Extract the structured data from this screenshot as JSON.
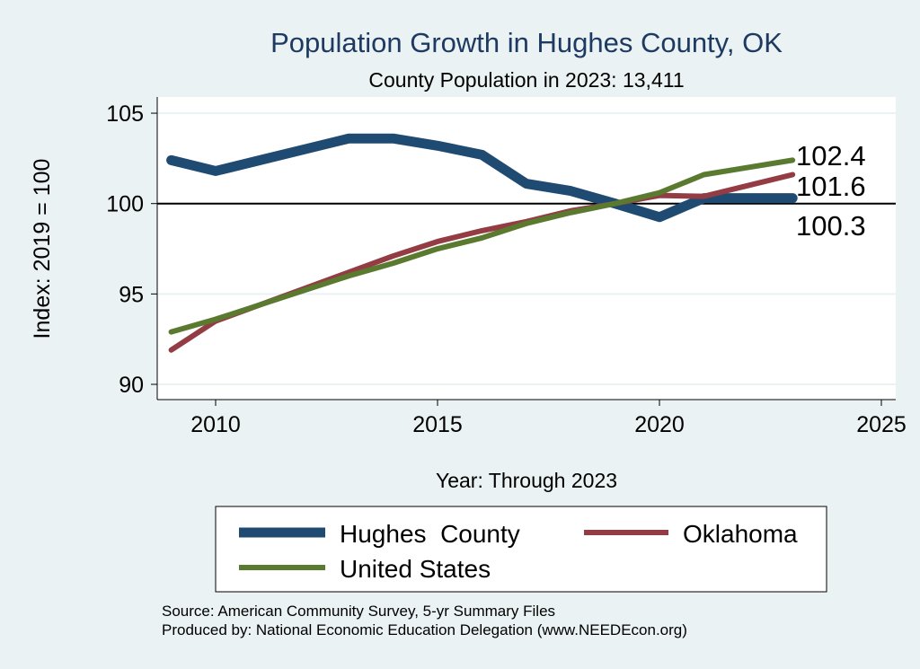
{
  "chart_data": {
    "type": "line",
    "title": "Population Growth in Hughes County, OK",
    "subtitle": "County Population in 2023: 13,411",
    "xlabel": "Year: Through 2023",
    "ylabel": "Index: 2019 = 100",
    "xlim": [
      2008.7,
      2025
    ],
    "ylim": [
      89.1,
      106
    ],
    "xticks": [
      2010,
      2015,
      2020,
      2025
    ],
    "yticks": [
      90,
      95,
      100,
      105
    ],
    "reference_line": 100,
    "grid": true,
    "legend_position": "bottom",
    "x": [
      2009,
      2010,
      2011,
      2012,
      2013,
      2014,
      2015,
      2016,
      2017,
      2018,
      2019,
      2020,
      2021,
      2022,
      2023
    ],
    "series": [
      {
        "name": "Hughes  County",
        "color": "#1f4b73",
        "end_label": "100.3",
        "values": [
          102.4,
          101.8,
          102.4,
          103.0,
          103.6,
          103.6,
          103.2,
          102.7,
          101.1,
          100.7,
          100.0,
          99.25,
          100.3,
          100.3,
          100.3
        ]
      },
      {
        "name": "Oklahoma",
        "color": "#943c44",
        "end_label": "101.6",
        "values": [
          91.9,
          93.5,
          94.4,
          95.3,
          96.2,
          97.1,
          97.9,
          98.5,
          99.0,
          99.6,
          100.0,
          100.45,
          100.4,
          101.0,
          101.6
        ]
      },
      {
        "name": "United States",
        "color": "#5a7a30",
        "end_label": "102.4",
        "values": [
          92.9,
          93.6,
          94.4,
          95.2,
          96.0,
          96.7,
          97.5,
          98.1,
          98.9,
          99.5,
          100.0,
          100.6,
          101.6,
          102.0,
          102.4
        ]
      }
    ]
  },
  "footer": {
    "source": "Source: American Community Survey, 5-yr Summary Files",
    "produced": "Produced by: National Economic Education Delegation (www.NEEDEcon.org)"
  }
}
